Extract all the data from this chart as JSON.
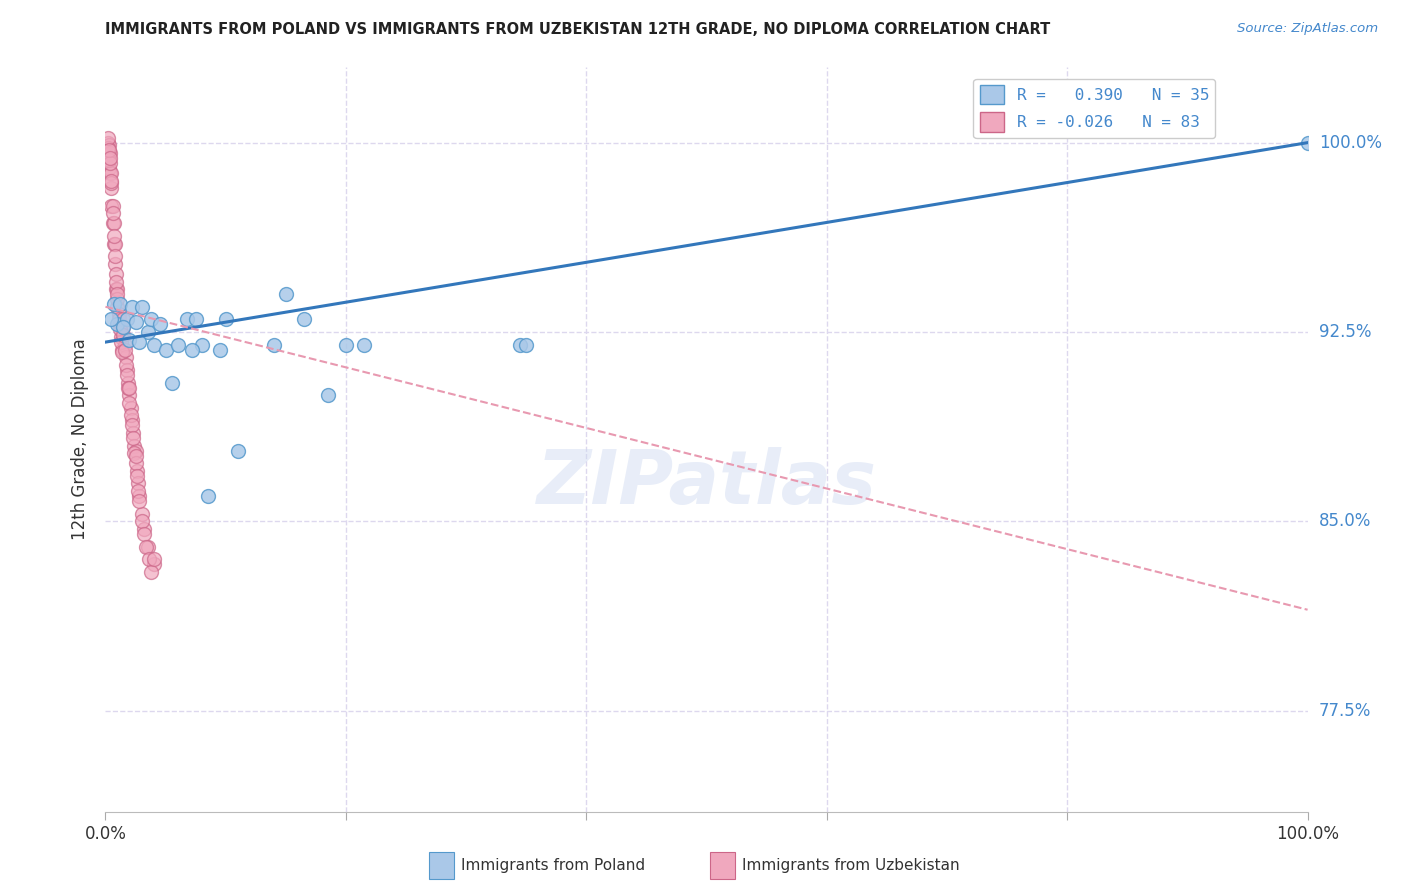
{
  "title": "IMMIGRANTS FROM POLAND VS IMMIGRANTS FROM UZBEKISTAN 12TH GRADE, NO DIPLOMA CORRELATION CHART",
  "source": "Source: ZipAtlas.com",
  "ylabel": "12th Grade, No Diploma",
  "yticks_pct": [
    77.5,
    85.0,
    92.5,
    100.0
  ],
  "xlim": [
    0.0,
    1.0
  ],
  "ylim": [
    0.735,
    1.03
  ],
  "poland_color": "#aac8e8",
  "poland_edge": "#5599cc",
  "uzbekistan_color": "#f0a8be",
  "uzbekistan_edge": "#cc6688",
  "poland_R": 0.39,
  "poland_N": 35,
  "uzbekistan_R": -0.026,
  "uzbekistan_N": 83,
  "trend_poland_color": "#3377bb",
  "trend_uzbekistan_color": "#e899b0",
  "grid_color": "#ddd8ee",
  "marker_size": 100,
  "poland_scatter_x": [
    0.007,
    0.01,
    0.012,
    0.018,
    0.022,
    0.025,
    0.03,
    0.035,
    0.038,
    0.04,
    0.045,
    0.05,
    0.06,
    0.068,
    0.075,
    0.08,
    0.095,
    0.1,
    0.11,
    0.14,
    0.165,
    0.185,
    0.2,
    0.215,
    0.345,
    0.35,
    0.005,
    0.015,
    0.02,
    0.028,
    0.055,
    0.072,
    0.085,
    0.15,
    1.0
  ],
  "poland_scatter_y": [
    0.936,
    0.928,
    0.936,
    0.93,
    0.935,
    0.929,
    0.935,
    0.925,
    0.93,
    0.92,
    0.928,
    0.918,
    0.92,
    0.93,
    0.93,
    0.92,
    0.918,
    0.93,
    0.878,
    0.92,
    0.93,
    0.9,
    0.92,
    0.92,
    0.92,
    0.92,
    0.93,
    0.927,
    0.922,
    0.921,
    0.905,
    0.918,
    0.86,
    0.94,
    1.0
  ],
  "uzbekistan_scatter_x": [
    0.002,
    0.002,
    0.003,
    0.003,
    0.003,
    0.004,
    0.004,
    0.005,
    0.005,
    0.005,
    0.006,
    0.006,
    0.007,
    0.007,
    0.008,
    0.008,
    0.009,
    0.009,
    0.01,
    0.01,
    0.011,
    0.012,
    0.013,
    0.014,
    0.015,
    0.016,
    0.017,
    0.018,
    0.019,
    0.02,
    0.021,
    0.022,
    0.023,
    0.024,
    0.025,
    0.026,
    0.027,
    0.028,
    0.03,
    0.032,
    0.035,
    0.04,
    0.002,
    0.003,
    0.004,
    0.005,
    0.006,
    0.007,
    0.008,
    0.009,
    0.01,
    0.011,
    0.012,
    0.013,
    0.014,
    0.015,
    0.016,
    0.017,
    0.018,
    0.019,
    0.02,
    0.021,
    0.022,
    0.023,
    0.024,
    0.025,
    0.026,
    0.027,
    0.028,
    0.03,
    0.032,
    0.034,
    0.036,
    0.038,
    0.002,
    0.003,
    0.004,
    0.005,
    0.01,
    0.015,
    0.02,
    0.025,
    0.04
  ],
  "uzbekistan_scatter_y": [
    1.0,
    0.995,
    0.999,
    0.995,
    0.99,
    0.996,
    0.988,
    0.988,
    0.982,
    0.975,
    0.975,
    0.968,
    0.968,
    0.96,
    0.96,
    0.952,
    0.948,
    0.942,
    0.942,
    0.935,
    0.932,
    0.928,
    0.923,
    0.918,
    0.927,
    0.92,
    0.915,
    0.91,
    0.905,
    0.9,
    0.895,
    0.89,
    0.885,
    0.88,
    0.878,
    0.87,
    0.865,
    0.86,
    0.853,
    0.847,
    0.84,
    0.833,
    0.998,
    0.993,
    0.992,
    0.984,
    0.972,
    0.963,
    0.955,
    0.945,
    0.938,
    0.93,
    0.926,
    0.921,
    0.917,
    0.924,
    0.918,
    0.912,
    0.908,
    0.903,
    0.897,
    0.892,
    0.888,
    0.883,
    0.877,
    0.873,
    0.868,
    0.862,
    0.858,
    0.85,
    0.845,
    0.84,
    0.835,
    0.83,
    1.002,
    0.997,
    0.994,
    0.985,
    0.94,
    0.93,
    0.903,
    0.876,
    0.835
  ],
  "watermark_text": "ZIPatlas",
  "legend_poland_label": "R =   0.390   N = 35",
  "legend_uzbekistan_label": "R = -0.026   N = 83",
  "bottom_legend_poland": "Immigrants from Poland",
  "bottom_legend_uzbekistan": "Immigrants from Uzbekistan",
  "poland_trend_x0": 0.0,
  "poland_trend_y0": 0.921,
  "poland_trend_x1": 1.0,
  "poland_trend_y1": 1.0,
  "uzbekistan_trend_x0": 0.0,
  "uzbekistan_trend_y0": 0.935,
  "uzbekistan_trend_x1": 1.0,
  "uzbekistan_trend_y1": 0.815
}
